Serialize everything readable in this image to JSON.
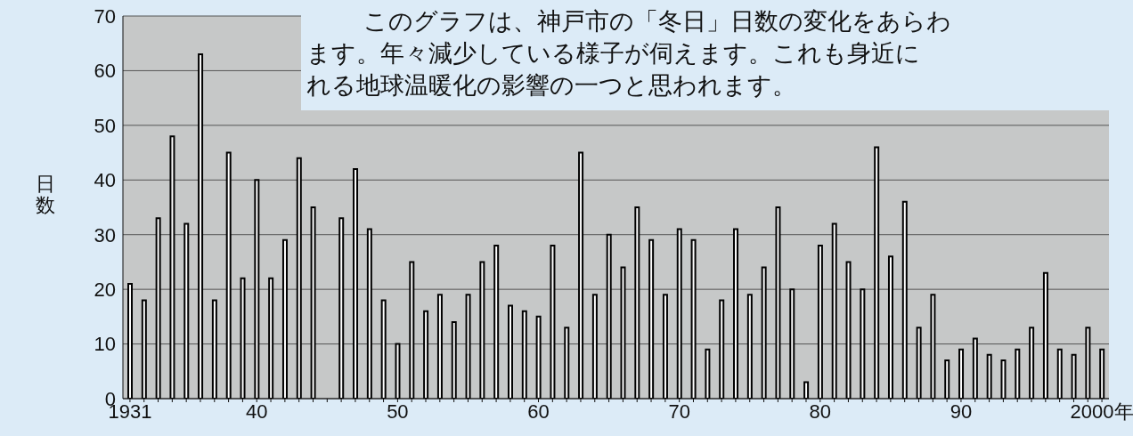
{
  "chart_data": {
    "type": "bar",
    "ylabel": "日数",
    "annotations": [
      "このグラフは、神戸市の「冬日」日数の変化をあらわ",
      "ます。年々減少している様子が伺えます。これも身近に",
      "れる地球温暖化の影響の一つと思われます。"
    ],
    "categories": [
      "1931",
      null,
      null,
      null,
      null,
      null,
      null,
      null,
      null,
      "40",
      null,
      null,
      null,
      null,
      null,
      null,
      null,
      null,
      null,
      "50",
      null,
      null,
      null,
      null,
      null,
      null,
      null,
      null,
      null,
      "60",
      null,
      null,
      null,
      null,
      null,
      null,
      null,
      null,
      null,
      "70",
      null,
      null,
      null,
      null,
      null,
      null,
      null,
      null,
      null,
      "80",
      null,
      null,
      null,
      null,
      null,
      null,
      null,
      null,
      null,
      "90",
      null,
      null,
      null,
      null,
      null,
      null,
      null,
      null,
      null,
      "2000年"
    ],
    "values": [
      21,
      18,
      33,
      48,
      32,
      63,
      18,
      45,
      22,
      40,
      22,
      29,
      44,
      35,
      null,
      33,
      42,
      31,
      18,
      10,
      25,
      16,
      19,
      14,
      19,
      25,
      28,
      17,
      16,
      15,
      28,
      13,
      45,
      19,
      30,
      24,
      35,
      29,
      19,
      31,
      29,
      9,
      18,
      31,
      19,
      24,
      35,
      20,
      3,
      28,
      32,
      25,
      20,
      46,
      26,
      36,
      13,
      19,
      7,
      9,
      11,
      8,
      7,
      9,
      13,
      23,
      9,
      8,
      13,
      9
    ],
    "color": "#ffffff",
    "ylim": [
      0,
      70
    ],
    "yticks": [
      0,
      10,
      20,
      30,
      40,
      50,
      60,
      70
    ],
    "grid": "y"
  }
}
